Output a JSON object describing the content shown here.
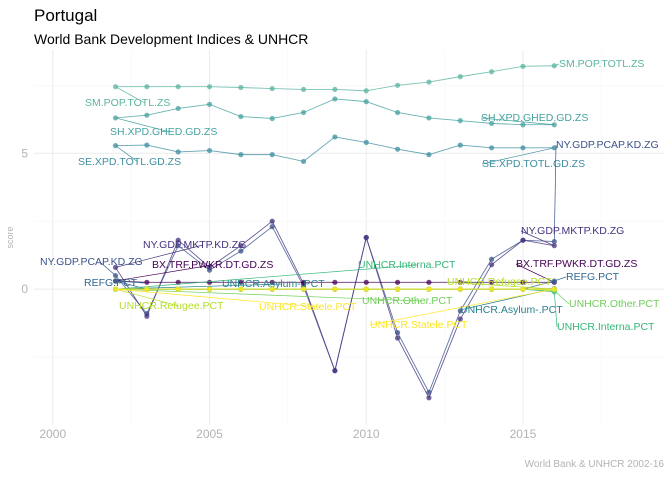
{
  "header": {
    "title": "Portugal",
    "subtitle": "World Bank Development Indices & UNHCR",
    "caption": "World Bank & UNHCR 2002-16"
  },
  "chart_data": {
    "type": "line",
    "title": "Portugal",
    "subtitle": "World Bank Development Indices & UNHCR",
    "xlabel": "",
    "ylabel": "score",
    "xlim": [
      1999.4,
      2019.5
    ],
    "ylim": [
      -5,
      8.8
    ],
    "x_ticks": [
      2000,
      2005,
      2010,
      2015
    ],
    "y_ticks": [
      0,
      5
    ],
    "grid": true,
    "legend": "none",
    "x": [
      2002,
      2003,
      2004,
      2005,
      2006,
      2007,
      2008,
      2009,
      2010,
      2011,
      2012,
      2013,
      2014,
      2015,
      2016
    ],
    "series": [
      {
        "name": "SM.POP.TOTL.ZS",
        "color": "#5ab4a0",
        "label_start": "SM.POP.TOTL.ZS",
        "label_end": "SM.POP.TOTL.ZS",
        "values": [
          7.45,
          7.45,
          7.45,
          7.45,
          7.42,
          7.38,
          7.35,
          7.35,
          7.3,
          7.5,
          7.62,
          7.82,
          8.0,
          8.2,
          8.22
        ]
      },
      {
        "name": "SH.XPD.GHED.GD.ZS",
        "color": "#44a2a0",
        "label_start": "SH.XPD.GHED.GD.ZS",
        "label_end": "SH.XPD.GHED.GD.ZS",
        "values": [
          6.3,
          6.4,
          6.65,
          6.8,
          6.35,
          6.28,
          6.5,
          7.0,
          6.9,
          6.5,
          6.3,
          6.2,
          6.1,
          6.05,
          6.05
        ]
      },
      {
        "name": "SE.XPD.TOTL.GD.ZS",
        "color": "#3d8fa0",
        "label_start": "SE.XPD.TOTL.GD.ZS",
        "label_end": "SE.XPD.TOTL.GD.ZS",
        "values": [
          5.28,
          5.3,
          5.05,
          5.1,
          4.95,
          4.95,
          4.7,
          5.6,
          5.4,
          5.15,
          4.95,
          5.3,
          5.2,
          5.2,
          5.2
        ]
      },
      {
        "name": "NY.GDP.PCAP.KD.ZG",
        "color": "#3b528b",
        "label_start": "NY.GDP.PCAP.KD.ZG",
        "label_end": "NY.GDP.PCAP.KD.ZG",
        "values": [
          0.5,
          -0.9,
          1.6,
          0.7,
          1.4,
          2.3,
          0.1,
          -3.0,
          1.9,
          -1.6,
          -3.8,
          -0.8,
          1.1,
          1.8,
          1.75
        ]
      },
      {
        "name": "NY.GDP.MKTP.KD.ZG",
        "color": "#46337e",
        "label_start": "NY.GDP.MKTP.KD.ZG",
        "label_end": "NY.GDP.MKTP.KD.ZG",
        "values": [
          0.8,
          -1.0,
          1.8,
          0.8,
          1.6,
          2.5,
          0.2,
          -3.0,
          1.9,
          -1.8,
          -4.0,
          -1.1,
          0.9,
          1.8,
          1.6
        ]
      },
      {
        "name": "BX.TRF.PWKR.DT.GD.ZS",
        "color": "#440154",
        "label_start": "BX.TRF.PWKR.DT.GD.ZS",
        "label_end": "BX.TRF.PWKR.DT.GD.ZS",
        "values": [
          0.3,
          0.25,
          0.25,
          0.25,
          0.25,
          0.25,
          0.25,
          0.25,
          0.25,
          0.25,
          0.25,
          0.25,
          0.25,
          0.25,
          0.25
        ]
      },
      {
        "name": "REFG.PCT",
        "color": "#31688e",
        "label_start": "REFG.PCT",
        "label_end": "REFG.PCT",
        "values": [
          0.3,
          0.0,
          0.0,
          0.0,
          0.0,
          0.0,
          0.0,
          0.0,
          0.0,
          0.0,
          0.0,
          0.0,
          0.0,
          0.0,
          0.3
        ]
      },
      {
        "name": "UNHCR.Asylum-.PCT",
        "color": "#26828e",
        "label_start": "UNHCR.Asylum-.PCT",
        "label_end": "UNHCR.Asylum-.PCT",
        "values": [
          0.0,
          0.0,
          0.0,
          0.0,
          0.0,
          0.0,
          0.0,
          0.0,
          0.0,
          0.0,
          0.0,
          0.0,
          0.0,
          0.0,
          0.02
        ]
      },
      {
        "name": "UNHCR.Interna.PCT",
        "color": "#35b779",
        "label_start": "UNHCR.Interna.PCT",
        "label_end": "UNHCR.Interna.PCT",
        "values": [
          0.0,
          0.0,
          0.0,
          0.0,
          0.0,
          0.0,
          0.0,
          0.0,
          0.0,
          0.0,
          0.0,
          0.0,
          0.0,
          0.0,
          -0.1
        ]
      },
      {
        "name": "UNHCR.Other.PCT",
        "color": "#6ece58",
        "label_start": "UNHCR.Other.PCT",
        "label_end": "UNHCR.Other.PCT",
        "values": [
          0.0,
          0.0,
          0.0,
          0.0,
          0.0,
          0.0,
          0.0,
          0.0,
          0.0,
          0.0,
          0.0,
          0.0,
          0.0,
          0.0,
          -0.05
        ]
      },
      {
        "name": "UNHCR.Refugee.PCT",
        "color": "#b5de2b",
        "label_start": "UNHCR.Refugee.PCT",
        "label_end": "UNHCR.Refugee.PCT",
        "values": [
          0.0,
          0.0,
          0.0,
          0.0,
          0.0,
          0.0,
          0.0,
          0.0,
          0.0,
          0.0,
          0.0,
          0.0,
          0.0,
          0.0,
          0.0
        ]
      },
      {
        "name": "UNHCR.Statele.PCT",
        "color": "#fde725",
        "label_start": "UNHCR.Statele.PCT",
        "label_end": "UNHCR.Statele.PCT",
        "values": [
          0.0,
          0.0,
          0.0,
          0.0,
          0.0,
          0.0,
          0.0,
          0.0,
          0.0,
          0.0,
          0.0,
          0.0,
          0.0,
          0.0,
          0.0
        ]
      }
    ]
  }
}
